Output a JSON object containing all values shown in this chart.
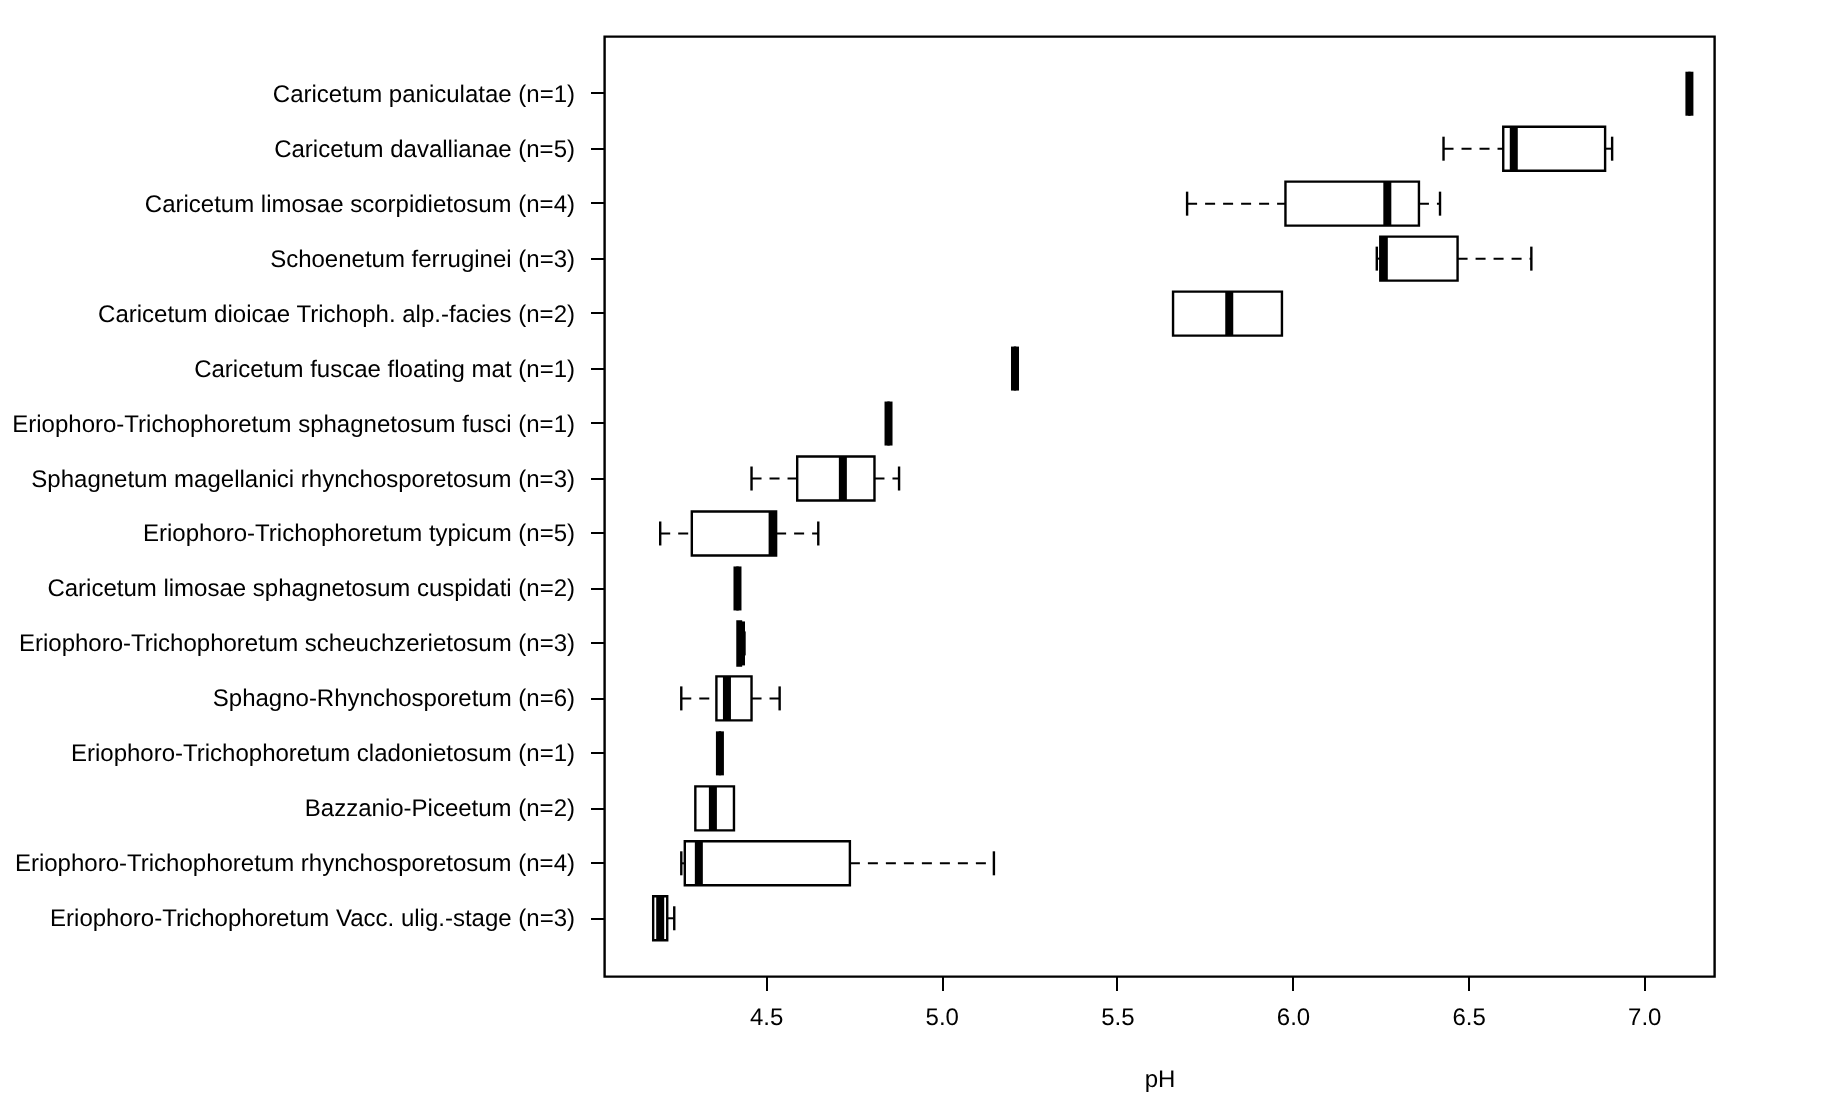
{
  "chart_data": {
    "type": "box",
    "orientation": "horizontal",
    "xlabel": "pH",
    "grid": false,
    "categories": [
      "Caricetum paniculatae (n=1)",
      "Caricetum davallianae (n=5)",
      "Caricetum limosae scorpidietosum (n=4)",
      "Schoenetum ferruginei (n=3)",
      "Caricetum dioicae Trichoph. alp.-facies (n=2)",
      "Caricetum fuscae floating mat (n=1)",
      "Eriophoro-Trichophoretum sphagnetosum fusci (n=1)",
      "Sphagnetum magellanici rhynchosporetosum (n=3)",
      "Eriophoro-Trichophoretum typicum (n=5)",
      "Caricetum limosae sphagnetosum cuspidati (n=2)",
      "Eriophoro-Trichophoretum scheuchzerietosum (n=3)",
      "Sphagno-Rhynchosporetum (n=6)",
      "Eriophoro-Trichophoretum cladonietosum (n=1)",
      "Bazzanio-Piceetum (n=2)",
      "Eriophoro-Trichophoretum rhynchosporetosum (n=4)",
      "Eriophoro-Trichophoretum Vacc. ulig.-stage (n=3)"
    ],
    "boxes": [
      {
        "low": 7.13,
        "q1": 7.13,
        "median": 7.13,
        "q3": 7.13,
        "high": 7.13
      },
      {
        "low": 6.43,
        "q1": 6.6,
        "median": 6.63,
        "q3": 6.89,
        "high": 6.91
      },
      {
        "low": 5.7,
        "q1": 5.98,
        "median": 6.27,
        "q3": 6.36,
        "high": 6.42
      },
      {
        "low": 6.24,
        "q1": 6.25,
        "median": 6.26,
        "q3": 6.47,
        "high": 6.68
      },
      {
        "low": 5.66,
        "q1": 5.66,
        "median": 5.82,
        "q3": 5.97,
        "high": 5.97
      },
      {
        "low": 5.21,
        "q1": 5.21,
        "median": 5.21,
        "q3": 5.21,
        "high": 5.21
      },
      {
        "low": 4.85,
        "q1": 4.85,
        "median": 4.85,
        "q3": 4.85,
        "high": 4.85
      },
      {
        "low": 4.46,
        "q1": 4.59,
        "median": 4.72,
        "q3": 4.81,
        "high": 4.88
      },
      {
        "low": 4.2,
        "q1": 4.29,
        "median": 4.52,
        "q3": 4.53,
        "high": 4.65
      },
      {
        "low": 4.42,
        "q1": 4.42,
        "median": 4.42,
        "q3": 4.42,
        "high": 4.42
      },
      {
        "low": 4.42,
        "q1": 4.42,
        "median": 4.43,
        "q3": 4.43,
        "high": 4.44
      },
      {
        "low": 4.26,
        "q1": 4.36,
        "median": 4.39,
        "q3": 4.46,
        "high": 4.54
      },
      {
        "low": 4.37,
        "q1": 4.37,
        "median": 4.37,
        "q3": 4.37,
        "high": 4.37
      },
      {
        "low": 4.3,
        "q1": 4.3,
        "median": 4.35,
        "q3": 4.41,
        "high": 4.41
      },
      {
        "low": 4.26,
        "q1": 4.27,
        "median": 4.31,
        "q3": 4.74,
        "high": 5.15
      },
      {
        "low": 4.18,
        "q1": 4.18,
        "median": 4.2,
        "q3": 4.22,
        "high": 4.24
      }
    ],
    "xlim": [
      4.04,
      7.2
    ],
    "xticks": [
      4.5,
      {
        "value": 5,
        "label": "5.0"
      },
      5.5,
      {
        "value": 6,
        "label": "6.0"
      },
      6.5,
      {
        "value": 7,
        "label": "7.0"
      }
    ]
  }
}
